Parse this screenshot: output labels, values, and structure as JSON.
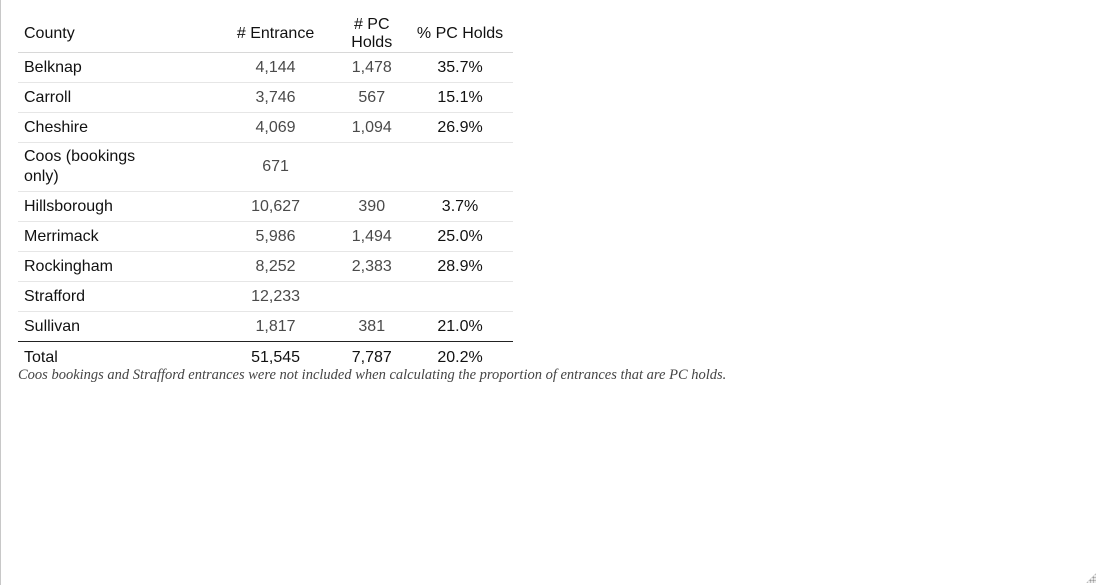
{
  "table": {
    "headers": [
      "County",
      "# Entrance",
      "# PC Holds",
      "% PC Holds"
    ],
    "rows": [
      {
        "county": "Belknap",
        "entrance": "4,144",
        "pc_holds": "1,478",
        "pct": "35.7%"
      },
      {
        "county": "Carroll",
        "entrance": "3,746",
        "pc_holds": "567",
        "pct": "15.1%"
      },
      {
        "county": "Cheshire",
        "entrance": "4,069",
        "pc_holds": "1,094",
        "pct": "26.9%"
      },
      {
        "county": "Coos (bookings only)",
        "entrance": "671",
        "pc_holds": "",
        "pct": ""
      },
      {
        "county": "Hillsborough",
        "entrance": "10,627",
        "pc_holds": "390",
        "pct": "3.7%"
      },
      {
        "county": "Merrimack",
        "entrance": "5,986",
        "pc_holds": "1,494",
        "pct": "25.0%"
      },
      {
        "county": "Rockingham",
        "entrance": "8,252",
        "pc_holds": "2,383",
        "pct": "28.9%"
      },
      {
        "county": "Strafford",
        "entrance": "12,233",
        "pc_holds": "",
        "pct": ""
      },
      {
        "county": "Sullivan",
        "entrance": "1,817",
        "pc_holds": "381",
        "pct": "21.0%"
      }
    ],
    "total": {
      "label": "Total",
      "entrance": "51,545",
      "pc_holds": "7,787",
      "pct": "20.2%"
    }
  },
  "footnote": "Coos bookings and Strafford entrances were not included when calculating the proportion of entrances that are PC holds."
}
